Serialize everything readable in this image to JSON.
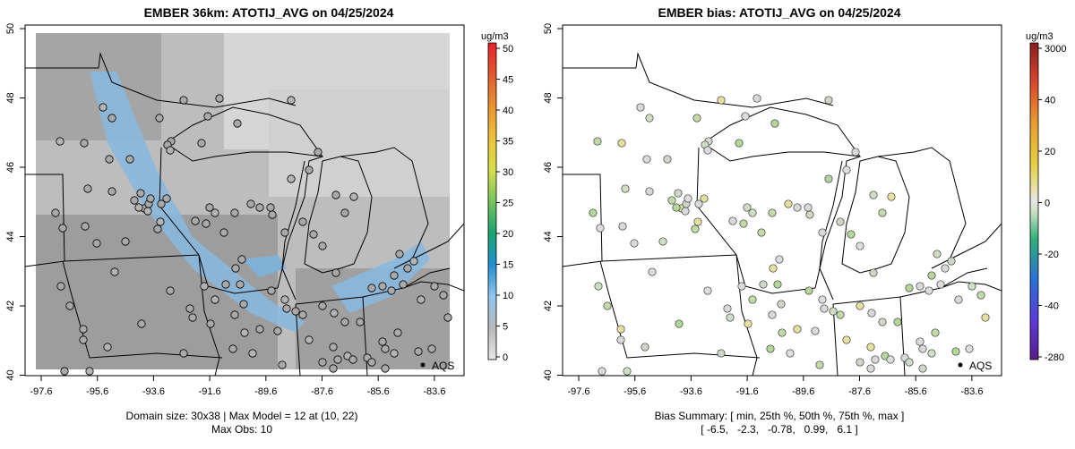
{
  "left_panel": {
    "title": "EMBER 36km: ATOTIJ_AVG on 04/25/2024",
    "x_ticks": [
      "-97.6",
      "-95.6",
      "-93.6",
      "-91.6",
      "-89.6",
      "-87.6",
      "-85.6",
      "-83.6"
    ],
    "y_ticks": [
      "50",
      "48",
      "46",
      "44",
      "42",
      "40"
    ],
    "colorbar_unit": "ug/m3",
    "colorbar_ticks": [
      "50",
      "45",
      "40",
      "35",
      "30",
      "25",
      "20",
      "15",
      "10",
      "5",
      "0"
    ],
    "label_aqs": "AQS",
    "footer_line1": "Domain size: 30x38 | Max Model = 12 at (10, 22)",
    "footer_line2": "Max Obs: 10"
  },
  "right_panel": {
    "title": "EMBER bias: ATOTIJ_AVG on 04/25/2024",
    "x_ticks": [
      "-97.6",
      "-95.6",
      "-93.6",
      "-91.6",
      "-89.6",
      "-87.6",
      "-85.6",
      "-83.6"
    ],
    "y_ticks": [
      "50",
      "48",
      "46",
      "44",
      "42",
      "40"
    ],
    "colorbar_unit": "ug/m3",
    "colorbar_ticks": [
      "3000",
      "40",
      "20",
      "0",
      "-20",
      "-40",
      "-280"
    ],
    "label_aqs": "AQS",
    "footer_line1": "Bias Summary: [ min, 25th %, 50th %, 75th %, max ]",
    "footer_line2": "[ -6.5,   -2.3,   -0.78,   0.99,   6.1 ]"
  },
  "colors": {
    "model_gray_dark": "#8f8f8f",
    "model_gray_light": "#d9d9d9",
    "model_blue": "#7fb0d6",
    "obs_gray": "#a8a8a8",
    "bias_neutral": "#d8d8d8",
    "bias_green": "#a9d18e",
    "bias_yellow": "#e6e07a"
  }
}
